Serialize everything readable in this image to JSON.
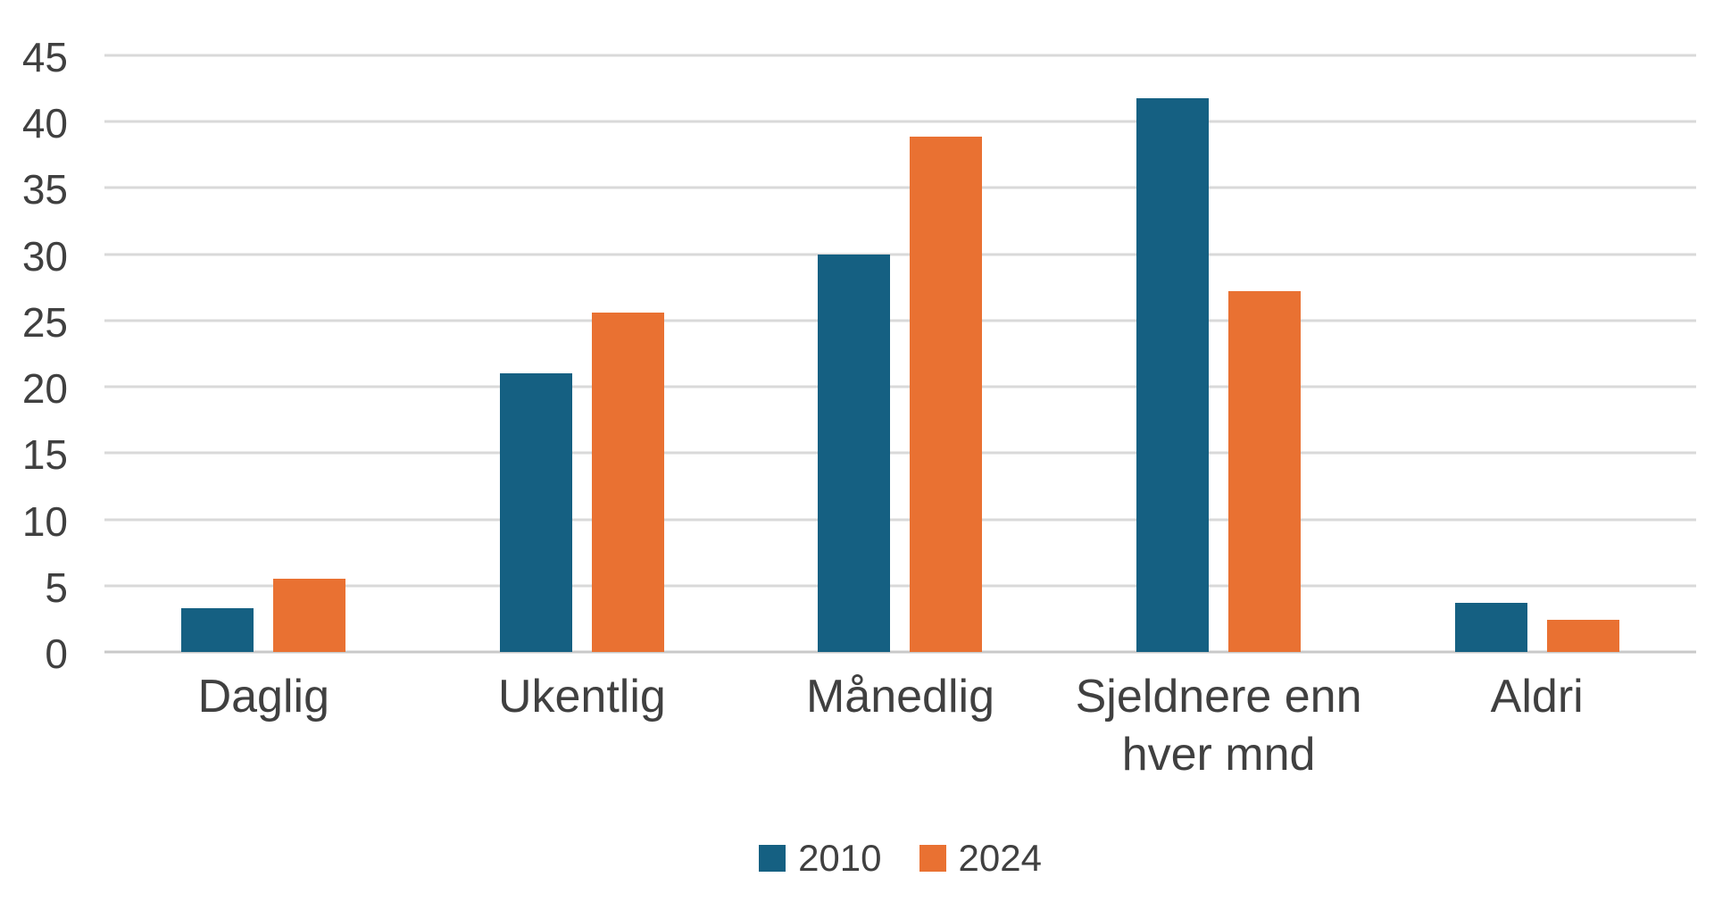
{
  "chart_data": {
    "type": "bar",
    "title": "",
    "categories": [
      "Daglig",
      "Ukentlig",
      "Månedlig",
      "Sjeldnere enn hver mnd",
      "Aldri"
    ],
    "series": [
      {
        "name": "2010",
        "color": "#156082",
        "values": [
          3.3,
          21.0,
          30.0,
          41.8,
          3.7
        ]
      },
      {
        "name": "2024",
        "color": "#E97132",
        "values": [
          5.5,
          25.6,
          38.9,
          27.2,
          2.4
        ]
      }
    ],
    "xlabel": "",
    "ylabel": "",
    "ylim": [
      0,
      45
    ],
    "yticks": [
      0,
      5,
      10,
      15,
      20,
      25,
      30,
      35,
      40,
      45
    ],
    "grid": "horizontal",
    "legend_position": "bottom",
    "colors": {
      "background": "#ffffff",
      "gridline": "#d9d9d9",
      "baseline": "#c9c9c9",
      "axis_text": "#404040",
      "legend_text": "#404040"
    }
  }
}
